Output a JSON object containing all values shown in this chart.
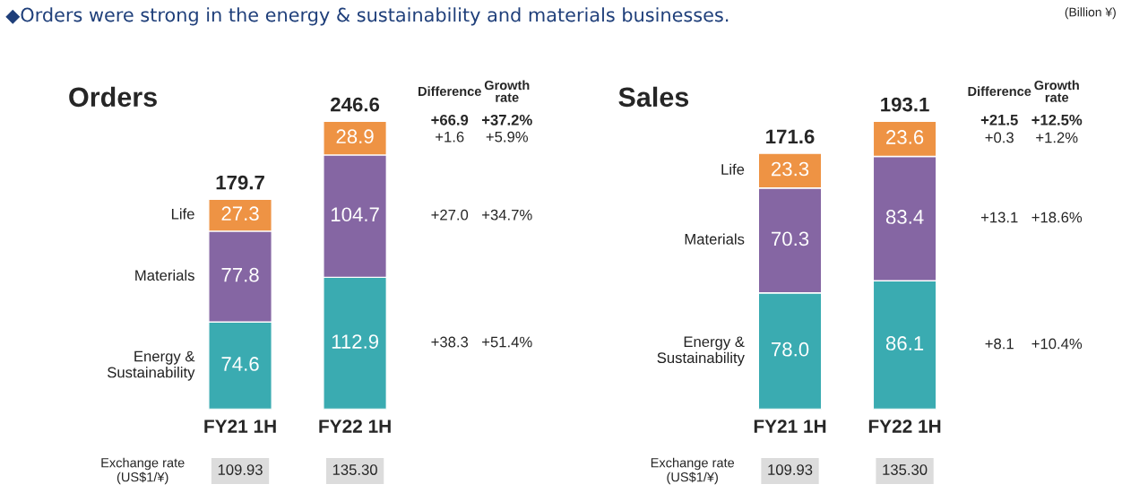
{
  "chart_data": [
    {
      "type": "bar",
      "title": "Orders",
      "stacked": true,
      "data_labels": true,
      "categories": [
        "FY21 1H",
        "FY22 1H"
      ],
      "series": [
        {
          "name": "Energy &\nSustainability",
          "color": "#3aabb1",
          "values": [
            74.6,
            112.9
          ]
        },
        {
          "name": "Materials",
          "color": "#8566a3",
          "values": [
            77.8,
            104.7
          ]
        },
        {
          "name": "Life",
          "color": "#ee9344",
          "values": [
            27.3,
            28.9
          ]
        }
      ],
      "totals": [
        "179.7",
        "246.6"
      ],
      "annotations": [
        "Difference",
        "Growth\nrate",
        "Exchange rate\n(US$1/¥)",
        "109.93",
        "135.30",
        "◆Orders were strong in the energy & sustainability and materials businesses.",
        "+66.9",
        "+37.2%",
        "+1.6",
        "+5.9%",
        "+27.0",
        "+34.7%",
        "+38.3",
        "+51.4%"
      ]
    },
    {
      "type": "bar",
      "title": "Sales",
      "stacked": true,
      "data_labels": true,
      "categories": [
        "FY21 1H",
        "FY22 1H"
      ],
      "series": [
        {
          "name": "Energy &\nSustainability",
          "color": "#3aabb1",
          "values": [
            78.0,
            86.1
          ],
          "value_labels": [
            "78.0",
            "86.1"
          ]
        },
        {
          "name": "Materials",
          "color": "#8566a3",
          "values": [
            70.3,
            83.4
          ]
        },
        {
          "name": "Life",
          "color": "#ee9344",
          "values": [
            23.3,
            23.6
          ]
        }
      ],
      "totals": [
        "171.6",
        "193.1"
      ],
      "annotations": [
        "Difference",
        "Growth\nrate",
        "Exchange rate\n(US$1/¥)",
        "109.93",
        "135.30",
        "(Billion ¥)",
        "+21.5",
        "+12.5%",
        "+0.3",
        "+1.2%",
        "+13.1",
        "+18.6%",
        "+8.1",
        "+10.4%"
      ]
    }
  ]
}
